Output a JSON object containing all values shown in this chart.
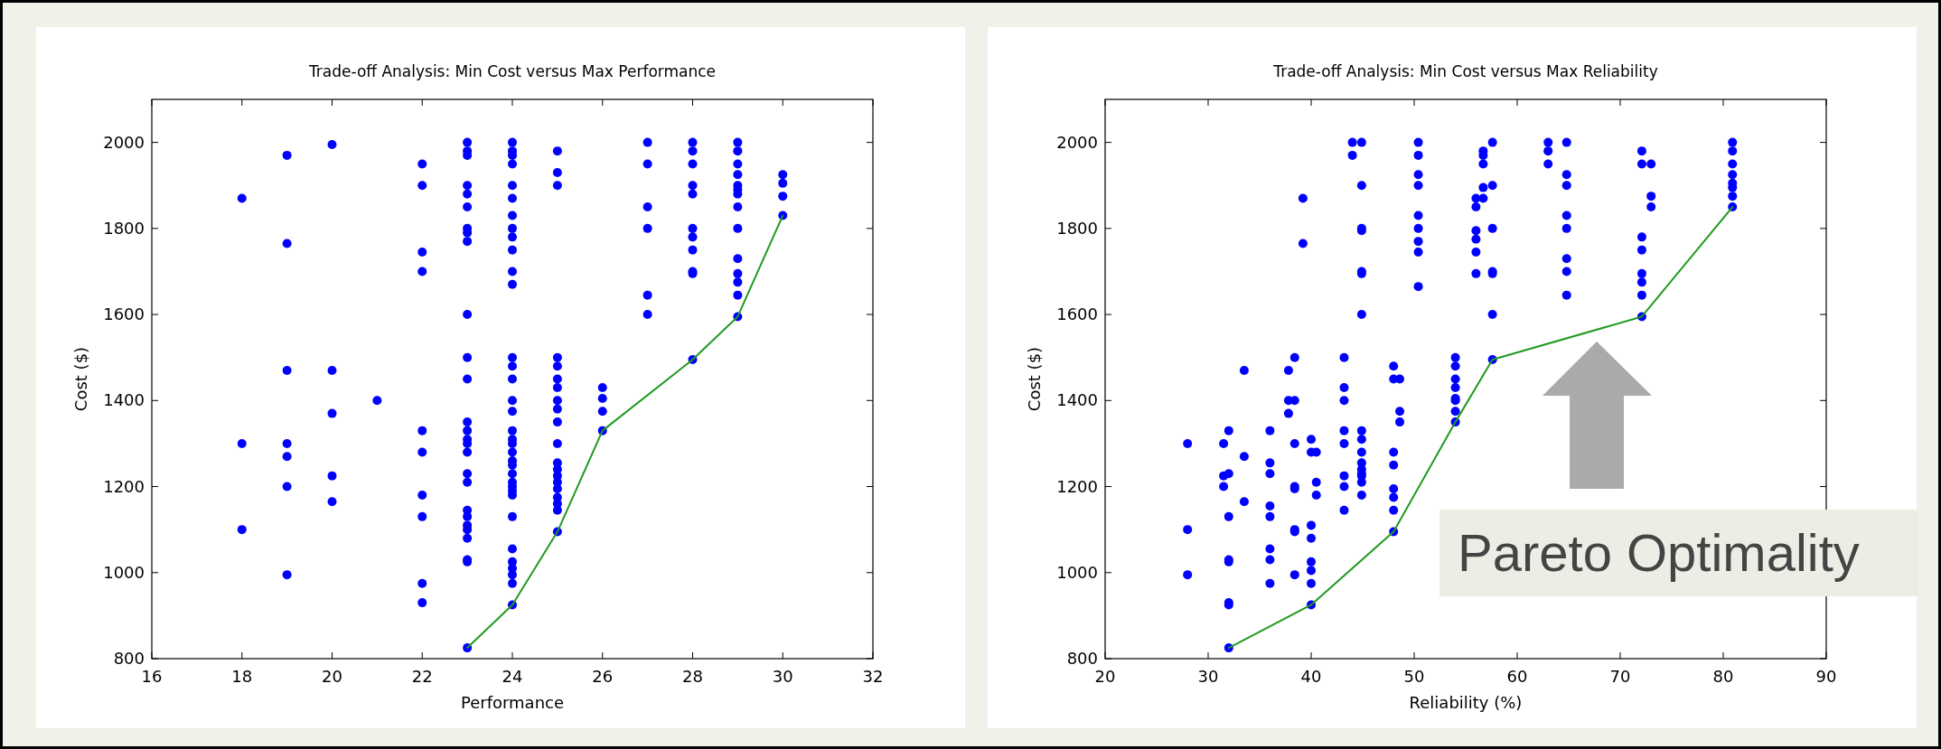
{
  "chart_data": [
    {
      "type": "scatter",
      "title": "Trade-off Analysis: Min Cost versus Max Performance",
      "xlabel": "Performance",
      "ylabel": "Cost ($)",
      "xlim": [
        16,
        32
      ],
      "xticks": [
        16,
        18,
        20,
        22,
        24,
        26,
        28,
        30,
        32
      ],
      "ylim": [
        800,
        2100
      ],
      "yticks": [
        800,
        1000,
        1200,
        1400,
        1600,
        1800,
        2000
      ],
      "grid": false,
      "marker": "circle",
      "series": [
        {
          "color": "#0000ff",
          "x": [
            18,
            18,
            18,
            19,
            19,
            19,
            19,
            19,
            19,
            19,
            20,
            20,
            20,
            20,
            20,
            21,
            22,
            22,
            22,
            22,
            22,
            22,
            22,
            22,
            22,
            22,
            23,
            23,
            23,
            23,
            23,
            23,
            23,
            23,
            23,
            23,
            23,
            23,
            23,
            23,
            23,
            23,
            23,
            23,
            23,
            23,
            23,
            23,
            23,
            23,
            23,
            23,
            23,
            24,
            24,
            24,
            24,
            24,
            24,
            24,
            24,
            24,
            24,
            24,
            24,
            24,
            24,
            24,
            24,
            24,
            24,
            24,
            24,
            24,
            24,
            24,
            24,
            24,
            24,
            24,
            24,
            24,
            24,
            24,
            24,
            24,
            24,
            24,
            25,
            25,
            25,
            25,
            25,
            25,
            25,
            25,
            25,
            25,
            25,
            25,
            25,
            25,
            25,
            25,
            25,
            25,
            25,
            25,
            26,
            26,
            26,
            26,
            27,
            27,
            27,
            27,
            27,
            27,
            28,
            28,
            28,
            28,
            28,
            28,
            28,
            28,
            28,
            28,
            28,
            29,
            29,
            29,
            29,
            29,
            29,
            29,
            29,
            29,
            29,
            29,
            29,
            29,
            29,
            30,
            30,
            30,
            30
          ],
          "values": [
            1870,
            1300,
            1100,
            1970,
            1765,
            1470,
            1300,
            1270,
            1200,
            995,
            1995,
            1470,
            1370,
            1225,
            1165,
            1400,
            1950,
            1900,
            1745,
            1700,
            1330,
            1280,
            1180,
            1130,
            975,
            930,
            2000,
            1980,
            1970,
            1900,
            1880,
            1850,
            1800,
            1790,
            1770,
            1600,
            1500,
            1450,
            1350,
            1330,
            1310,
            1300,
            1280,
            1230,
            1210,
            1145,
            1130,
            1110,
            1100,
            1080,
            1030,
            1025,
            825,
            2000,
            1980,
            1970,
            1950,
            1900,
            1870,
            1830,
            1800,
            1780,
            1750,
            1700,
            1670,
            1500,
            1480,
            1450,
            1400,
            1375,
            1330,
            1310,
            1300,
            1280,
            1260,
            1250,
            1230,
            1210,
            1200,
            1190,
            1180,
            1130,
            1055,
            1025,
            1010,
            995,
            975,
            925,
            1980,
            1930,
            1900,
            1500,
            1480,
            1450,
            1430,
            1400,
            1380,
            1350,
            1300,
            1255,
            1240,
            1225,
            1210,
            1195,
            1175,
            1160,
            1145,
            1095,
            1430,
            1405,
            1375,
            1330,
            2000,
            1950,
            1850,
            1800,
            1645,
            1600,
            2000,
            1980,
            1950,
            1900,
            1880,
            1800,
            1780,
            1750,
            1700,
            1695,
            1495,
            2000,
            1980,
            1950,
            1925,
            1900,
            1890,
            1880,
            1850,
            1800,
            1730,
            1695,
            1675,
            1645,
            1595,
            1925,
            1905,
            1875,
            1830
          ]
        },
        {
          "type": "line",
          "marker": "none",
          "color": "#1f9a1f",
          "x": [
            23,
            24,
            25,
            26,
            28,
            29,
            30
          ],
          "values": [
            825,
            925,
            1095,
            1330,
            1495,
            1595,
            1830
          ]
        }
      ]
    },
    {
      "type": "scatter",
      "title": "Trade-off Analysis: Min Cost versus Max Reliability",
      "xlabel": "Reliability (%)",
      "ylabel": "Cost ($)",
      "xlim": [
        20,
        90
      ],
      "xticks": [
        20,
        30,
        40,
        50,
        60,
        70,
        80,
        90
      ],
      "ylim": [
        800,
        2100
      ],
      "yticks": [
        800,
        1000,
        1200,
        1400,
        1600,
        1800,
        2000
      ],
      "grid": false,
      "marker": "circle",
      "annotations": [
        "Pareto Optimality"
      ],
      "series": [
        {
          "color": "#0000ff",
          "x": [
            28,
            28,
            28,
            31.5,
            31.5,
            31.5,
            32,
            32,
            32,
            32,
            32,
            32,
            32,
            32,
            33.5,
            33.5,
            33.5,
            36,
            36,
            36,
            36,
            36,
            36,
            36,
            36,
            37.8,
            37.8,
            37.8,
            38.4,
            38.4,
            38.4,
            38.4,
            38.4,
            38.4,
            38.4,
            38.4,
            39.2,
            39.2,
            40,
            40,
            40,
            40,
            40,
            40,
            40,
            40,
            40.5,
            40.5,
            40.5,
            43.2,
            43.2,
            43.2,
            43.2,
            43.2,
            43.2,
            43.2,
            43.2,
            44,
            44,
            44.9,
            44.9,
            44.9,
            44.9,
            44.9,
            44.9,
            44.9,
            44.9,
            44.9,
            44.9,
            44.9,
            44.9,
            44.9,
            44.9,
            44.9,
            44.9,
            48,
            48,
            48,
            48,
            48,
            48,
            48,
            48,
            48.6,
            48.6,
            48.6,
            50.4,
            50.4,
            50.4,
            50.4,
            50.4,
            50.4,
            50.4,
            50.4,
            50.4,
            54,
            54,
            54,
            54,
            54,
            54,
            54,
            54,
            56,
            56,
            56,
            56,
            56,
            56,
            56.7,
            56.7,
            56.7,
            56.7,
            56.7,
            57.6,
            57.6,
            57.6,
            57.6,
            57.6,
            57.6,
            57.6,
            63,
            63,
            63,
            64.8,
            64.8,
            64.8,
            64.8,
            64.8,
            64.8,
            64.8,
            64.8,
            72.1,
            72.1,
            72.1,
            72.1,
            72.1,
            72.1,
            72.1,
            72.1,
            73,
            73,
            73,
            80.9,
            80.9,
            80.9,
            80.9,
            80.9,
            80.9,
            80.9,
            80.9
          ],
          "values": [
            1300,
            1100,
            995,
            1300,
            1225,
            1200,
            1330,
            1230,
            1130,
            1030,
            1025,
            930,
            925,
            825,
            1470,
            1270,
            1165,
            1330,
            1255,
            1230,
            1155,
            1130,
            1055,
            1030,
            975,
            1470,
            1400,
            1370,
            1500,
            1400,
            1300,
            1200,
            1195,
            1100,
            1095,
            995,
            1870,
            1765,
            1310,
            1280,
            1110,
            1080,
            1025,
            1005,
            975,
            925,
            1280,
            1210,
            1180,
            1500,
            1430,
            1400,
            1330,
            1300,
            1225,
            1200,
            1145,
            2000,
            1970,
            2000,
            1900,
            1800,
            1795,
            1700,
            1695,
            1600,
            1330,
            1310,
            1280,
            1255,
            1240,
            1230,
            1225,
            1210,
            1180,
            1480,
            1450,
            1280,
            1250,
            1195,
            1175,
            1145,
            1095,
            1450,
            1375,
            1350,
            2000,
            1970,
            1925,
            1900,
            1830,
            1800,
            1770,
            1745,
            1665,
            1500,
            1480,
            1450,
            1430,
            1405,
            1400,
            1375,
            1350,
            1870,
            1850,
            1795,
            1775,
            1745,
            1695,
            1980,
            1970,
            1950,
            1895,
            1870,
            2000,
            1900,
            1800,
            1700,
            1695,
            1600,
            1495,
            2000,
            1980,
            1950,
            2000,
            1925,
            1900,
            1830,
            1800,
            1730,
            1700,
            1645,
            1980,
            1950,
            1780,
            1750,
            1695,
            1675,
            1645,
            1595,
            1950,
            1875,
            1850,
            2000,
            1980,
            1950,
            1925,
            1905,
            1895,
            1875,
            1850
          ]
        },
        {
          "type": "line",
          "marker": "none",
          "color": "#1f9a1f",
          "x": [
            32,
            40,
            48,
            54,
            57.6,
            72.1,
            80.9
          ],
          "values": [
            825,
            925,
            1095,
            1350,
            1495,
            1595,
            1850
          ]
        }
      ]
    }
  ]
}
